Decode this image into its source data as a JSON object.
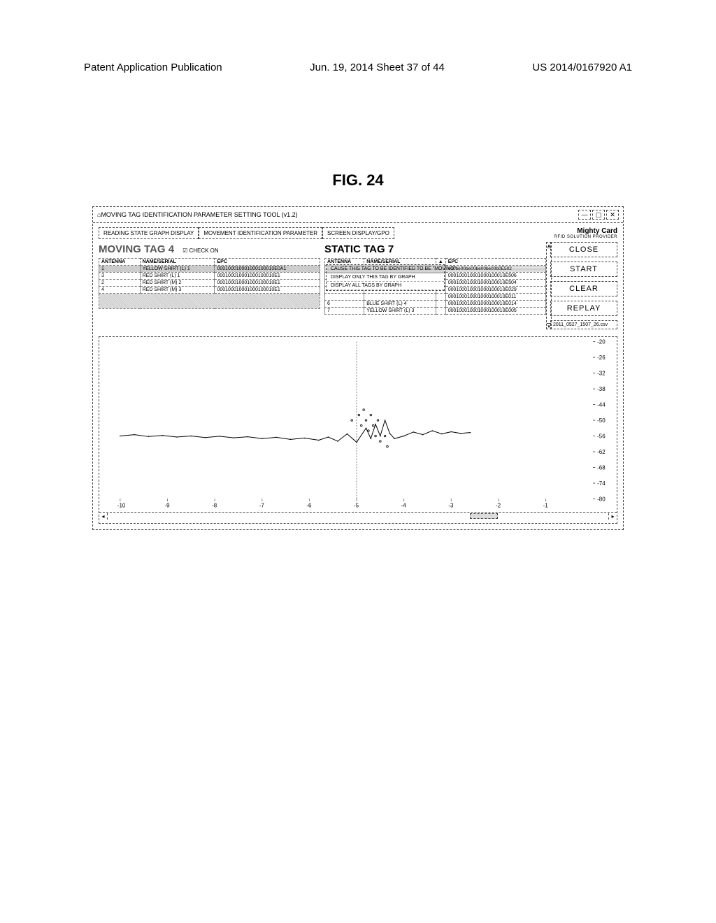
{
  "header": {
    "left": "Patent Application Publication",
    "mid": "Jun. 19, 2014  Sheet 37 of 44",
    "right": "US 2014/0167920 A1"
  },
  "figure_title": "FIG. 24",
  "window": {
    "title": "MOVING TAG IDENTIFICATION PARAMETER SETTING TOOL (v1.2)",
    "controls": {
      "min": "—",
      "max": "▢",
      "close": "✕"
    }
  },
  "tabs": [
    "READING STATE GRAPH DISPLAY",
    "MOVEMENT IDENTIFICATION PARAMETER",
    "SCREEN DISPLAY/GPO"
  ],
  "brand": {
    "name": "Mighty Card",
    "sub": "RFID SOLUTION PROVIDER"
  },
  "moving": {
    "title": "MOVING TAG 4",
    "check": "☑ CHECK ON",
    "cols": [
      "ANTENNA",
      "NAME/SERIAL",
      "EPC"
    ],
    "rows": [
      {
        "a": "1",
        "n": "YELLOW SHIRT (L) 1",
        "e": "000100010001000100010E0A1",
        "sel": true
      },
      {
        "a": "3",
        "n": "RED SHIRT (L) 1",
        "e": "000100010001000100010E1"
      },
      {
        "a": "2",
        "n": "RED SHIRT (M) 2",
        "e": "000100010001000100010E1"
      },
      {
        "a": "4",
        "n": "RED SHIRT (M) 3",
        "e": "000100010001000100010E1"
      }
    ]
  },
  "static": {
    "title": "STATIC TAG 7",
    "cols": [
      "ANTENNA",
      "NAME/SERIAL",
      "▲",
      "EPC"
    ],
    "rows": [
      {
        "a": "",
        "n": "YELLOW SHIRT (L) 3",
        "e": "e00be00be00be00be00b0E502",
        "ctxhdr": true
      },
      {
        "a": "",
        "n": "",
        "e": "000100010001000100010E506"
      },
      {
        "a": "",
        "n": "",
        "e": "000100010001000100010E504"
      },
      {
        "a": "",
        "n": "",
        "e": "000100010001000100010E029"
      },
      {
        "a": "",
        "n": "",
        "e": "000100010001000100010E011"
      },
      {
        "a": "6",
        "n": "BLUE SHIRT (L) 4",
        "e": "000100010001000100010E014"
      },
      {
        "a": "7",
        "n": "YELLOW SHIRT (L) 3",
        "e": "000100010001000100010E005"
      }
    ]
  },
  "context_menu": {
    "items": [
      {
        "label": "CAUSE THIS TAG TO BE IDENTIFIED TO BE \"MOVING\"",
        "hl": true
      },
      {
        "label": "DISPLAY ONLY THIS TAG BY GRAPH"
      },
      {
        "label": "DISPLAY ALL TAGS BY GRAPH"
      }
    ]
  },
  "buttons": {
    "close": "CLOSE",
    "start": "START",
    "clear": "CLEAR",
    "replay": "REPLAY"
  },
  "file_label": "2011_0527_1507_26.csv",
  "chart": {
    "xlim": [
      -10,
      0
    ],
    "ylim": [
      -80,
      -20
    ],
    "xticks": [
      -10,
      -9,
      -8,
      -7,
      -6,
      -5,
      -4,
      -3,
      -2,
      -1
    ],
    "yticks": [
      -20,
      -26,
      -32,
      -38,
      -44,
      -50,
      -56,
      -62,
      -68,
      -74,
      -80
    ],
    "grid_color": "#cccccc",
    "line_color": "#000000",
    "marker_color": "#000000",
    "background_color": "#ffffff",
    "series_line": [
      [
        -10,
        -56
      ],
      [
        -9.7,
        -55.5
      ],
      [
        -9.4,
        -56.2
      ],
      [
        -9.1,
        -55.8
      ],
      [
        -8.8,
        -56.4
      ],
      [
        -8.5,
        -56.0
      ],
      [
        -8.2,
        -56.6
      ],
      [
        -7.9,
        -56.1
      ],
      [
        -7.6,
        -56.7
      ],
      [
        -7.3,
        -56.3
      ],
      [
        -7.0,
        -57.0
      ],
      [
        -6.7,
        -56.5
      ],
      [
        -6.4,
        -57.3
      ],
      [
        -6.1,
        -56.8
      ],
      [
        -5.8,
        -57.6
      ],
      [
        -5.6,
        -56.4
      ],
      [
        -5.4,
        -58.0
      ],
      [
        -5.2,
        -55.2
      ],
      [
        -5.0,
        -58.4
      ],
      [
        -4.8,
        -53.0
      ],
      [
        -4.7,
        -57.0
      ],
      [
        -4.6,
        -51.5
      ],
      [
        -4.5,
        -56.0
      ],
      [
        -4.4,
        -50.0
      ],
      [
        -4.3,
        -55.0
      ],
      [
        -4.2,
        -57.0
      ],
      [
        -4.0,
        -56.0
      ],
      [
        -3.8,
        -54.5
      ],
      [
        -3.6,
        -55.5
      ],
      [
        -3.4,
        -54.0
      ],
      [
        -3.2,
        -55.2
      ],
      [
        -3.0,
        -54.4
      ],
      [
        -2.8,
        -55.0
      ],
      [
        -2.6,
        -54.7
      ]
    ],
    "series_scatter": [
      [
        -5.1,
        -50
      ],
      [
        -4.95,
        -48
      ],
      [
        -4.9,
        -52
      ],
      [
        -4.85,
        -46
      ],
      [
        -4.8,
        -50
      ],
      [
        -4.75,
        -54
      ],
      [
        -4.7,
        -48
      ],
      [
        -4.65,
        -52
      ],
      [
        -4.6,
        -56
      ],
      [
        -4.55,
        -50
      ],
      [
        -4.5,
        -58
      ],
      [
        -4.4,
        -56
      ],
      [
        -4.35,
        -60
      ]
    ]
  }
}
